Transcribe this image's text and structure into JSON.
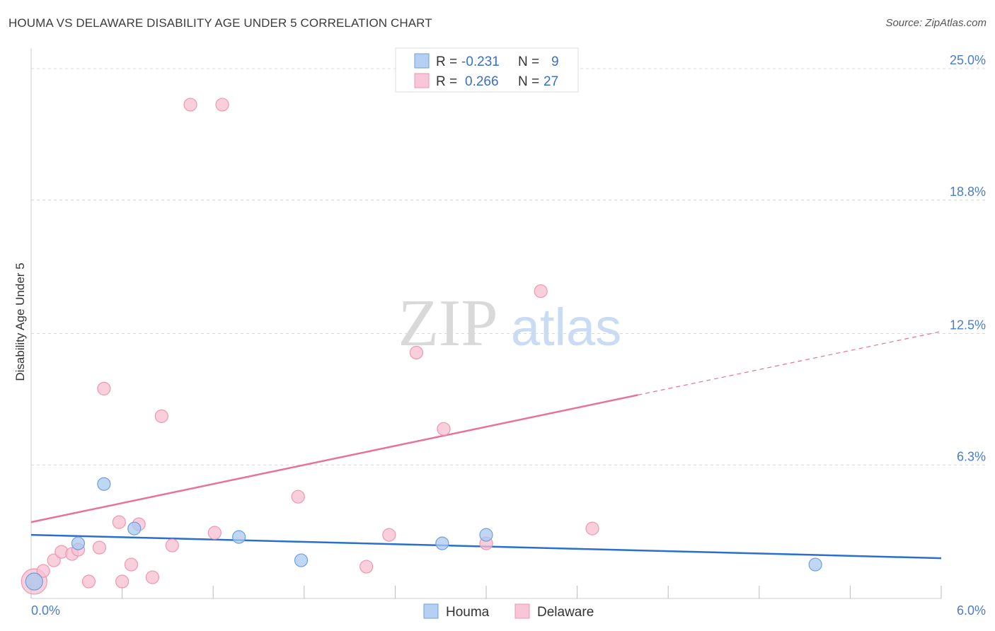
{
  "title": "HOUMA VS DELAWARE DISABILITY AGE UNDER 5 CORRELATION CHART",
  "source": "Source: ZipAtlas.com",
  "watermark": {
    "zip": "ZIP",
    "atlas": "atlas"
  },
  "colors": {
    "houma": "#a9c8f0",
    "houma_stroke": "#6f9fd8",
    "houma_line": "#2a6fcf",
    "delaware": "#f7bfd0",
    "delaware_stroke": "#ec97b3",
    "delaware_line": "#e8709a",
    "tick": "#4a7ccc",
    "grid": "#d8d8d8"
  },
  "legend": {
    "rows": [
      {
        "series": "Houma",
        "r_label": "R =",
        "r_value": "-0.231",
        "n_label": "N =",
        "n_value": "9"
      },
      {
        "series": "Delaware",
        "r_label": "R =",
        "r_value": "0.266",
        "n_label": "N =",
        "n_value": "27"
      }
    ]
  },
  "chart_data": {
    "type": "scatter",
    "title": "HOUMA VS DELAWARE DISABILITY AGE UNDER 5 CORRELATION CHART",
    "xlabel": "",
    "ylabel": "Disability Age Under 5",
    "xlim": [
      0,
      6
    ],
    "ylim": [
      0,
      25
    ],
    "x_tick_labels": [
      "0.0%",
      "6.0%"
    ],
    "y_ticks": [
      6.3,
      12.5,
      18.8,
      25.0
    ],
    "y_tick_labels": [
      "6.3%",
      "12.5%",
      "18.8%",
      "25.0%"
    ],
    "grid": true,
    "series": [
      {
        "name": "Houma",
        "points": [
          {
            "x": 0.02,
            "y": 0.8
          },
          {
            "x": 0.31,
            "y": 2.6
          },
          {
            "x": 0.48,
            "y": 5.4
          },
          {
            "x": 0.68,
            "y": 3.3
          },
          {
            "x": 1.37,
            "y": 2.9
          },
          {
            "x": 1.78,
            "y": 1.8
          },
          {
            "x": 2.71,
            "y": 2.6
          },
          {
            "x": 3.0,
            "y": 3.0
          },
          {
            "x": 5.17,
            "y": 1.6
          }
        ],
        "trend": {
          "x0": 0,
          "y0": 3.0,
          "x1": 6.0,
          "y1": 1.9
        }
      },
      {
        "name": "Delaware",
        "points": [
          {
            "x": 0.02,
            "y": 0.8
          },
          {
            "x": 0.08,
            "y": 1.3
          },
          {
            "x": 0.15,
            "y": 1.8
          },
          {
            "x": 0.2,
            "y": 2.2
          },
          {
            "x": 0.27,
            "y": 2.1
          },
          {
            "x": 0.31,
            "y": 2.3
          },
          {
            "x": 0.38,
            "y": 0.8
          },
          {
            "x": 0.45,
            "y": 2.4
          },
          {
            "x": 0.48,
            "y": 9.9
          },
          {
            "x": 0.58,
            "y": 3.6
          },
          {
            "x": 0.6,
            "y": 0.8
          },
          {
            "x": 0.66,
            "y": 1.6
          },
          {
            "x": 0.71,
            "y": 3.5
          },
          {
            "x": 0.8,
            "y": 1.0
          },
          {
            "x": 0.86,
            "y": 8.6
          },
          {
            "x": 0.93,
            "y": 2.5
          },
          {
            "x": 1.05,
            "y": 23.3
          },
          {
            "x": 1.21,
            "y": 3.1
          },
          {
            "x": 1.26,
            "y": 23.3
          },
          {
            "x": 1.76,
            "y": 4.8
          },
          {
            "x": 2.21,
            "y": 1.5
          },
          {
            "x": 2.36,
            "y": 3.0
          },
          {
            "x": 2.54,
            "y": 11.6
          },
          {
            "x": 2.72,
            "y": 8.0
          },
          {
            "x": 3.0,
            "y": 2.6
          },
          {
            "x": 3.36,
            "y": 14.5
          },
          {
            "x": 3.7,
            "y": 3.3
          }
        ],
        "trend": {
          "x0": 0,
          "y0": 3.6,
          "x1": 4.0,
          "y1": 9.6,
          "dash_to_x": 6.0,
          "dash_to_y": 12.6
        }
      }
    ]
  }
}
